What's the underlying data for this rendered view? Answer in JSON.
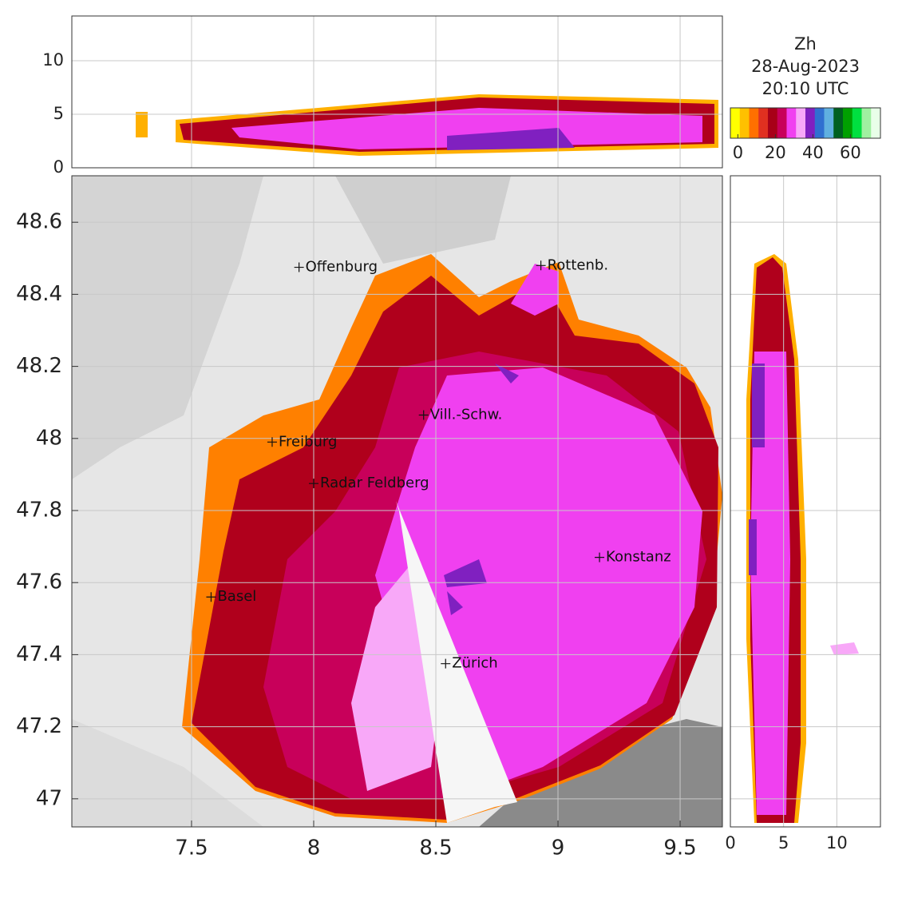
{
  "chart_data": {
    "type": "radar-map",
    "title": [
      "Zh",
      "28-Aug-2023",
      "20:10 UTC"
    ],
    "main": {
      "xlim": [
        7.01,
        9.673
      ],
      "ylim": [
        46.922,
        48.729
      ],
      "xticks": [
        7.5,
        8,
        8.5,
        9,
        9.5
      ],
      "yticks": [
        47,
        47.2,
        47.4,
        47.6,
        47.8,
        48,
        48.2,
        48.4,
        48.6
      ]
    },
    "top": {
      "ylim": [
        0,
        14.18
      ],
      "yticks": [
        0,
        5,
        10
      ]
    },
    "side": {
      "xlim": [
        0,
        14.1
      ],
      "xticks": [
        0,
        5,
        10
      ]
    },
    "colorbar": {
      "lim": [
        -4,
        76
      ],
      "ticks": [
        0,
        20,
        40,
        60
      ],
      "colors": [
        "#ffff00",
        "#ffc000",
        "#ff7000",
        "#e03020",
        "#a80018",
        "#c8005a",
        "#f040f0",
        "#f8a8f8",
        "#8020c0",
        "#3070d0",
        "#60b0e0",
        "#006020",
        "#00a000",
        "#00e040",
        "#a0f0a0",
        "#e8ffe8"
      ]
    },
    "cities": [
      {
        "name": "Offenburg",
        "lon": 7.94,
        "lat": 48.475
      },
      {
        "name": "Rottenb.",
        "lon": 8.93,
        "lat": 48.48
      },
      {
        "name": "Vill.-Schw.",
        "lon": 8.45,
        "lat": 48.065
      },
      {
        "name": "Freiburg",
        "lon": 7.83,
        "lat": 47.99
      },
      {
        "name": "Radar Feldberg",
        "lon": 8.0,
        "lat": 47.875
      },
      {
        "name": "Konstanz",
        "lon": 9.17,
        "lat": 47.67
      },
      {
        "name": "Basel",
        "lon": 7.58,
        "lat": 47.56
      },
      {
        "name": "Zürich",
        "lon": 8.54,
        "lat": 47.375
      }
    ],
    "grid": true
  }
}
